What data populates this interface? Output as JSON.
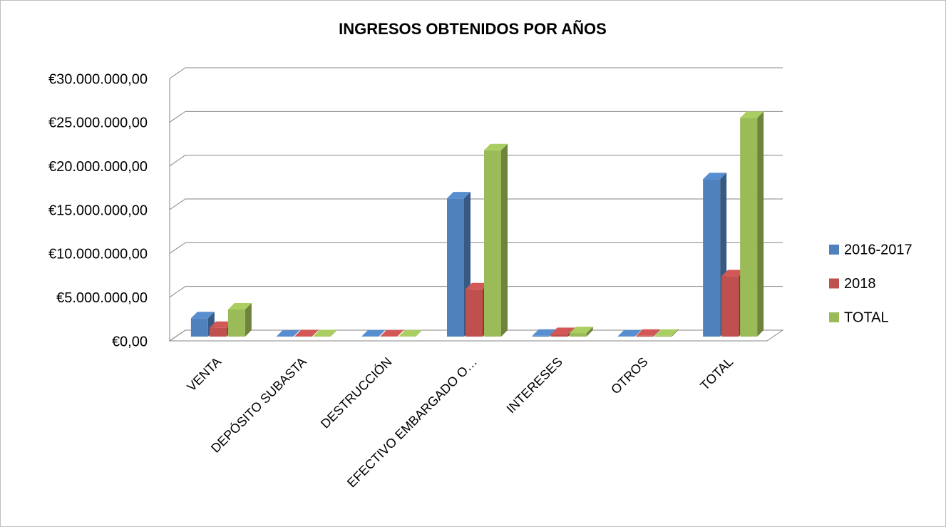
{
  "chart_data": {
    "type": "bar3d",
    "title": "INGRESOS OBTENIDOS POR AÑOS",
    "categories": [
      "VENTA",
      "DEPÓSITO SUBASTA",
      "DESTRUCCIÓN",
      "EFECTIVO EMBARGADO O…",
      "INTERESES",
      "OTROS",
      "TOTAL"
    ],
    "series": [
      {
        "name": "2016-2017",
        "color": "#4f81bd",
        "values": [
          2100000,
          0,
          20000,
          15800000,
          100000,
          20000,
          18000000
        ]
      },
      {
        "name": "2018",
        "color": "#c0504d",
        "values": [
          1000000,
          50000,
          20000,
          5400000,
          300000,
          100000,
          6900000
        ]
      },
      {
        "name": "TOTAL",
        "color": "#9bbb59",
        "values": [
          3100000,
          50000,
          20000,
          21300000,
          400000,
          100000,
          25000000
        ]
      }
    ],
    "ylim": [
      0,
      30000000
    ],
    "yticks": [
      {
        "value": 0,
        "label": "€0,00"
      },
      {
        "value": 5000000,
        "label": "€5.000.000,00"
      },
      {
        "value": 10000000,
        "label": "€10.000.000,00"
      },
      {
        "value": 15000000,
        "label": "€15.000.000,00"
      },
      {
        "value": 20000000,
        "label": "€20.000.000,00"
      },
      {
        "value": 25000000,
        "label": "€25.000.000,00"
      },
      {
        "value": 30000000,
        "label": "€30.000.000,00"
      }
    ],
    "grid": true,
    "legend": "right"
  }
}
